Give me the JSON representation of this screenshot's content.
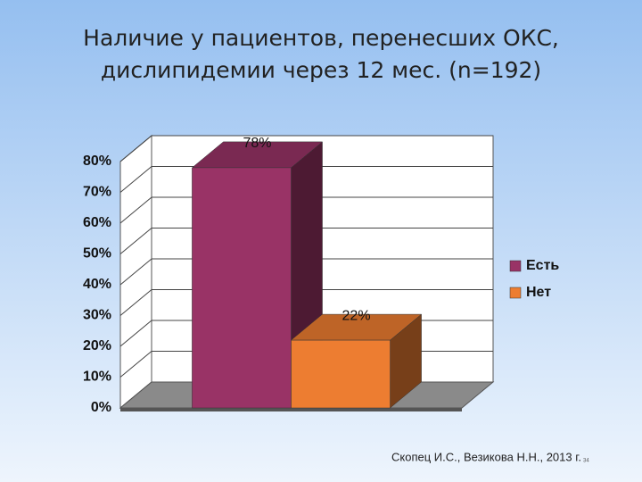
{
  "chart_data": {
    "type": "bar",
    "title": [
      "Наличие у пациентов, перенесших ОКС,",
      "дислипидемии через 12 мес. (n=192)"
    ],
    "categories": [
      null
    ],
    "series": [
      {
        "name": "Есть",
        "color": "#993366",
        "values": [
          78
        ],
        "value_labels": [
          "78%"
        ]
      },
      {
        "name": "Нет",
        "color": "#ed7d31",
        "values": [
          22
        ],
        "value_labels": [
          "22%"
        ]
      }
    ],
    "ylim": [
      0,
      80
    ],
    "yticks": [
      {
        "value": 0,
        "label": "0%"
      },
      {
        "value": 10,
        "label": "10%"
      },
      {
        "value": 20,
        "label": "20%"
      },
      {
        "value": 30,
        "label": "30%"
      },
      {
        "value": 40,
        "label": "40%"
      },
      {
        "value": 50,
        "label": "50%"
      },
      {
        "value": 60,
        "label": "60%"
      },
      {
        "value": 70,
        "label": "70%"
      },
      {
        "value": 80,
        "label": "80%"
      }
    ],
    "grid": true,
    "legend": "right"
  },
  "footer": {
    "citation": "Скопец И.С., Везикова Н.Н., 2013 г.",
    "page_number": "34"
  }
}
